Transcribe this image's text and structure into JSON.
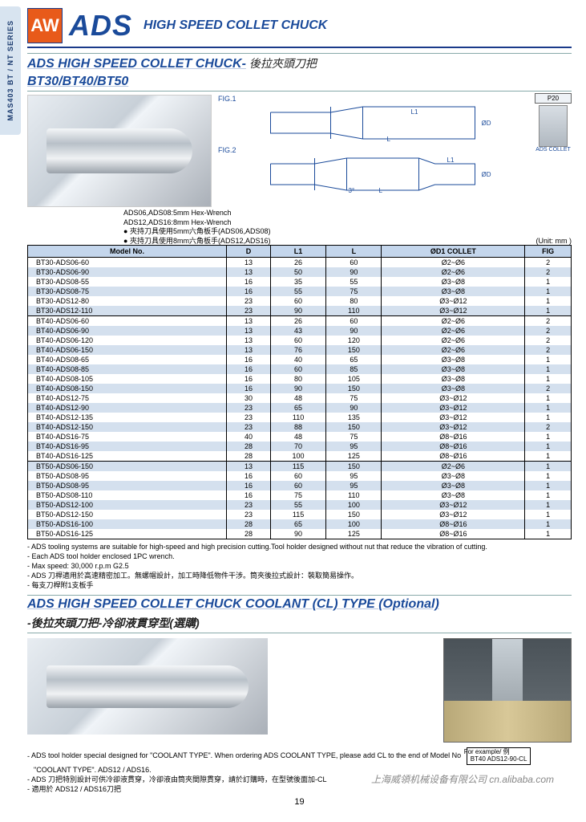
{
  "side_tab": "MAS403 BT / NT SERIES",
  "logo_text": "AW",
  "title_main": "ADS",
  "title_sub": "HIGH SPEED COLLET CHUCK",
  "section1_en": "ADS HIGH SPEED COLLET CHUCK-",
  "section1_cn": "後拉夾頭刀把",
  "section1_models": "BT30/BT40/BT50",
  "fig1_label": "FIG.1",
  "fig2_label": "FIG.2",
  "p20_cap": "P20",
  "p20_lbl": "ADS COLLET",
  "wrench_notes": {
    "l1": "ADS06,ADS08:5mm Hex-Wrench",
    "l2": "ADS12,ADS16:8mm Hex-Wrench",
    "l3": "夾持刀具使用5mm六角板手(ADS06,ADS08)",
    "l4": "夾持刀具使用8mm六角板手(ADS12,ADS16)"
  },
  "unit_label": "(Unit: mm )",
  "table_headers": [
    "Model No.",
    "D",
    "L1",
    "L",
    "ØD1 COLLET",
    "FIG"
  ],
  "rows": [
    {
      "m": "BT30-ADS06-60",
      "d": "13",
      "l1": "26",
      "l": "60",
      "c": "Ø2~Ø6",
      "f": "2",
      "ge": 0
    },
    {
      "m": "BT30-ADS06-90",
      "d": "13",
      "l1": "50",
      "l": "90",
      "c": "Ø2~Ø6",
      "f": "2",
      "ge": 0
    },
    {
      "m": "BT30-ADS08-55",
      "d": "16",
      "l1": "35",
      "l": "55",
      "c": "Ø3~Ø8",
      "f": "1",
      "ge": 0
    },
    {
      "m": "BT30-ADS08-75",
      "d": "16",
      "l1": "55",
      "l": "75",
      "c": "Ø3~Ø8",
      "f": "1",
      "ge": 0
    },
    {
      "m": "BT30-ADS12-80",
      "d": "23",
      "l1": "60",
      "l": "80",
      "c": "Ø3~Ø12",
      "f": "1",
      "ge": 0
    },
    {
      "m": "BT30-ADS12-110",
      "d": "23",
      "l1": "90",
      "l": "110",
      "c": "Ø3~Ø12",
      "f": "1",
      "ge": 1
    },
    {
      "m": "BT40-ADS06-60",
      "d": "13",
      "l1": "26",
      "l": "60",
      "c": "Ø2~Ø6",
      "f": "2",
      "ge": 0
    },
    {
      "m": "BT40-ADS06-90",
      "d": "13",
      "l1": "43",
      "l": "90",
      "c": "Ø2~Ø6",
      "f": "2",
      "ge": 0
    },
    {
      "m": "BT40-ADS06-120",
      "d": "13",
      "l1": "60",
      "l": "120",
      "c": "Ø2~Ø6",
      "f": "2",
      "ge": 0
    },
    {
      "m": "BT40-ADS06-150",
      "d": "13",
      "l1": "76",
      "l": "150",
      "c": "Ø2~Ø6",
      "f": "2",
      "ge": 0
    },
    {
      "m": "BT40-ADS08-65",
      "d": "16",
      "l1": "40",
      "l": "65",
      "c": "Ø3~Ø8",
      "f": "1",
      "ge": 0
    },
    {
      "m": "BT40-ADS08-85",
      "d": "16",
      "l1": "60",
      "l": "85",
      "c": "Ø3~Ø8",
      "f": "1",
      "ge": 0
    },
    {
      "m": "BT40-ADS08-105",
      "d": "16",
      "l1": "80",
      "l": "105",
      "c": "Ø3~Ø8",
      "f": "1",
      "ge": 0
    },
    {
      "m": "BT40-ADS08-150",
      "d": "16",
      "l1": "90",
      "l": "150",
      "c": "Ø3~Ø8",
      "f": "2",
      "ge": 0
    },
    {
      "m": "BT40-ADS12-75",
      "d": "30",
      "l1": "48",
      "l": "75",
      "c": "Ø3~Ø12",
      "f": "1",
      "ge": 0
    },
    {
      "m": "BT40-ADS12-90",
      "d": "23",
      "l1": "65",
      "l": "90",
      "c": "Ø3~Ø12",
      "f": "1",
      "ge": 0
    },
    {
      "m": "BT40-ADS12-135",
      "d": "23",
      "l1": "110",
      "l": "135",
      "c": "Ø3~Ø12",
      "f": "1",
      "ge": 0
    },
    {
      "m": "BT40-ADS12-150",
      "d": "23",
      "l1": "88",
      "l": "150",
      "c": "Ø3~Ø12",
      "f": "2",
      "ge": 0
    },
    {
      "m": "BT40-ADS16-75",
      "d": "40",
      "l1": "48",
      "l": "75",
      "c": "Ø8~Ø16",
      "f": "1",
      "ge": 0
    },
    {
      "m": "BT40-ADS16-95",
      "d": "28",
      "l1": "70",
      "l": "95",
      "c": "Ø8~Ø16",
      "f": "1",
      "ge": 0
    },
    {
      "m": "BT40-ADS16-125",
      "d": "28",
      "l1": "100",
      "l": "125",
      "c": "Ø8~Ø16",
      "f": "1",
      "ge": 1
    },
    {
      "m": "BT50-ADS06-150",
      "d": "13",
      "l1": "115",
      "l": "150",
      "c": "Ø2~Ø6",
      "f": "1",
      "ge": 0
    },
    {
      "m": "BT50-ADS08-95",
      "d": "16",
      "l1": "60",
      "l": "95",
      "c": "Ø3~Ø8",
      "f": "1",
      "ge": 0
    },
    {
      "m": "BT50-ADS08-95",
      "d": "16",
      "l1": "60",
      "l": "95",
      "c": "Ø3~Ø8",
      "f": "1",
      "ge": 0
    },
    {
      "m": "BT50-ADS08-110",
      "d": "16",
      "l1": "75",
      "l": "110",
      "c": "Ø3~Ø8",
      "f": "1",
      "ge": 0
    },
    {
      "m": "BT50-ADS12-100",
      "d": "23",
      "l1": "55",
      "l": "100",
      "c": "Ø3~Ø12",
      "f": "1",
      "ge": 0
    },
    {
      "m": "BT50-ADS12-150",
      "d": "23",
      "l1": "115",
      "l": "150",
      "c": "Ø3~Ø12",
      "f": "1",
      "ge": 0
    },
    {
      "m": "BT50-ADS16-100",
      "d": "28",
      "l1": "65",
      "l": "100",
      "c": "Ø8~Ø16",
      "f": "1",
      "ge": 0
    },
    {
      "m": "BT50-ADS16-125",
      "d": "28",
      "l1": "90",
      "l": "125",
      "c": "Ø8~Ø16",
      "f": "1",
      "ge": 1
    }
  ],
  "notes1": [
    "ADS tooling systems are suitable for high-speed and high precision cutting.Tool holder designed without nut that reduce the vibration of cutting.",
    "Each ADS tool holder enclosed 1PC wrench.",
    "Max speed: 30,000 r.p.m G2.5",
    "ADS 刀桿適用於高速精密加工。無螺帽設計，加工時降低物件干涉。筒夾後拉式設計：裝取簡易操作。",
    "每支刀桿附1支板手"
  ],
  "section2_en": "ADS HIGH SPEED COLLET CHUCK COOLANT (CL) TYPE (Optional)",
  "section2_cn": "-後拉夾頭刀把-冷卻液貫穿型(選購)",
  "notes2": {
    "a1": "ADS tool holder special designed for \"COOLANT TYPE\".  When ordering ADS COOLANT TYPE, please add CL to the end of Model No",
    "ex_t": "For example/ 例",
    "ex_v": "BT40 ADS12-90-CL",
    "a2": "\"COOLANT TYPE\". ADS12 / ADS16.",
    "b": "ADS 刀把特別設計可供冷卻液貫穿，冷卻液由筒夾間隙貫穿，請於訂購時，在型號後面加-CL",
    "c": "適用於 ADS12 / ADS16刀把"
  },
  "watermark": "上海威領机械设备有限公司 cn.alibaba.com",
  "page_number": "19"
}
